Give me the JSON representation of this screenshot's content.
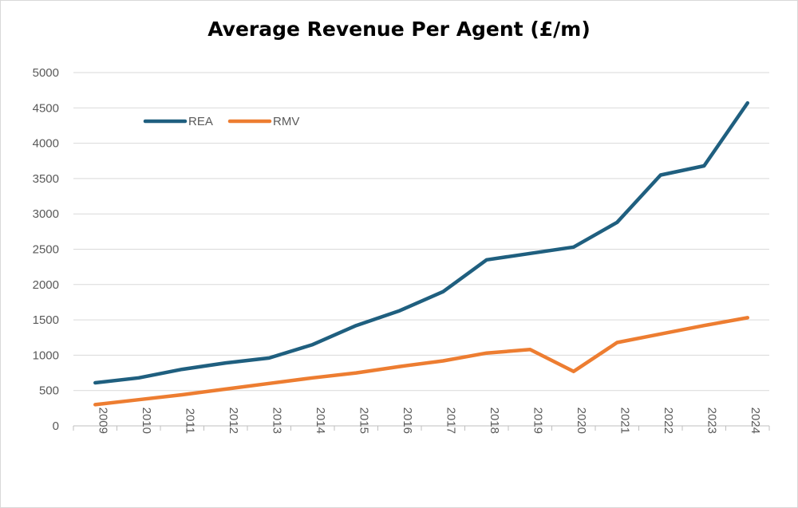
{
  "chart_data": {
    "type": "line",
    "title": "Average Revenue Per Agent (£/m)",
    "xlabel": "",
    "ylabel": "",
    "categories": [
      "2009",
      "2010",
      "2011",
      "2012",
      "2013",
      "2014",
      "2015",
      "2016",
      "2017",
      "2018",
      "2019",
      "2020",
      "2021",
      "2022",
      "2023",
      "2024"
    ],
    "series": [
      {
        "name": "REA",
        "color": "#1f5f7f",
        "values": [
          610,
          680,
          800,
          890,
          960,
          1150,
          1420,
          1630,
          1900,
          2350,
          2440,
          2530,
          2880,
          3550,
          3680,
          4570
        ]
      },
      {
        "name": "RMV",
        "color": "#ed7d31",
        "values": [
          300,
          370,
          440,
          520,
          600,
          680,
          750,
          840,
          920,
          1030,
          1080,
          770,
          1180,
          1300,
          1420,
          1530
        ]
      }
    ],
    "y_ticks": [
      0,
      500,
      1000,
      1500,
      2000,
      2500,
      3000,
      3500,
      4000,
      4500,
      5000
    ],
    "ylim": [
      0,
      5000
    ],
    "grid": true,
    "legend_position": "top-left"
  }
}
